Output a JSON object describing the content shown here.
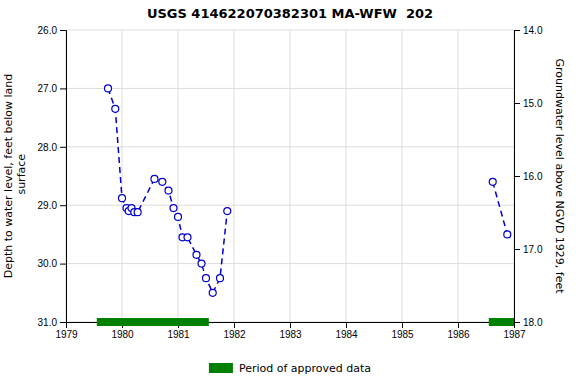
{
  "chart_data": {
    "type": "line",
    "title": "USGS 414622070382301 MA-WFW  202",
    "ylabel": "Depth to water level, feet below land\n surface",
    "y2label": "Groundwater level above NGVD 1929, feet",
    "x": [
      1979.75,
      1979.88,
      1980.0,
      1980.08,
      1980.12,
      1980.17,
      1980.22,
      1980.28,
      1980.58,
      1980.72,
      1980.83,
      1980.92,
      1981.0,
      1981.08,
      1981.17,
      1981.33,
      1981.42,
      1981.5,
      1981.62,
      1981.75,
      1981.88,
      null,
      1986.62,
      1986.88
    ],
    "series": [
      {
        "color": "#0000cc",
        "marker": "circle",
        "line_style": "dashed",
        "values": [
          27.0,
          27.35,
          28.88,
          29.05,
          29.1,
          29.05,
          29.12,
          29.12,
          28.55,
          28.6,
          28.75,
          29.05,
          29.2,
          29.55,
          29.55,
          29.85,
          30.0,
          30.25,
          30.5,
          30.25,
          29.1,
          null,
          28.6,
          29.5
        ]
      }
    ],
    "xlim": [
      1979,
      1987
    ],
    "xticks": [
      1979,
      1980,
      1981,
      1982,
      1983,
      1984,
      1985,
      1986,
      1987
    ],
    "ylim": [
      31.0,
      26.0
    ],
    "yticks": [
      {
        "value": 26.0,
        "label": "26.0"
      },
      {
        "value": 27.0,
        "label": "27.0"
      },
      {
        "value": 28.0,
        "label": "28.0"
      },
      {
        "value": 29.0,
        "label": "29.0"
      },
      {
        "value": 30.0,
        "label": "30.0"
      },
      {
        "value": 31.0,
        "label": "31.0"
      }
    ],
    "y2lim": [
      18.0,
      14.0
    ],
    "y2ticks": [
      {
        "value": 18.0,
        "label": "18.0"
      },
      {
        "value": 17.0,
        "label": "17.0"
      },
      {
        "value": 16.0,
        "label": "16.0"
      },
      {
        "value": 15.0,
        "label": "15.0"
      },
      {
        "value": 14.0,
        "label": "14.0"
      }
    ],
    "grid": true,
    "legend": "bottom",
    "approved_periods": {
      "name": "Period of approved data",
      "color": "#008000",
      "ranges": [
        [
          1979.55,
          1981.55
        ],
        [
          1986.55,
          1987.0
        ]
      ]
    }
  }
}
